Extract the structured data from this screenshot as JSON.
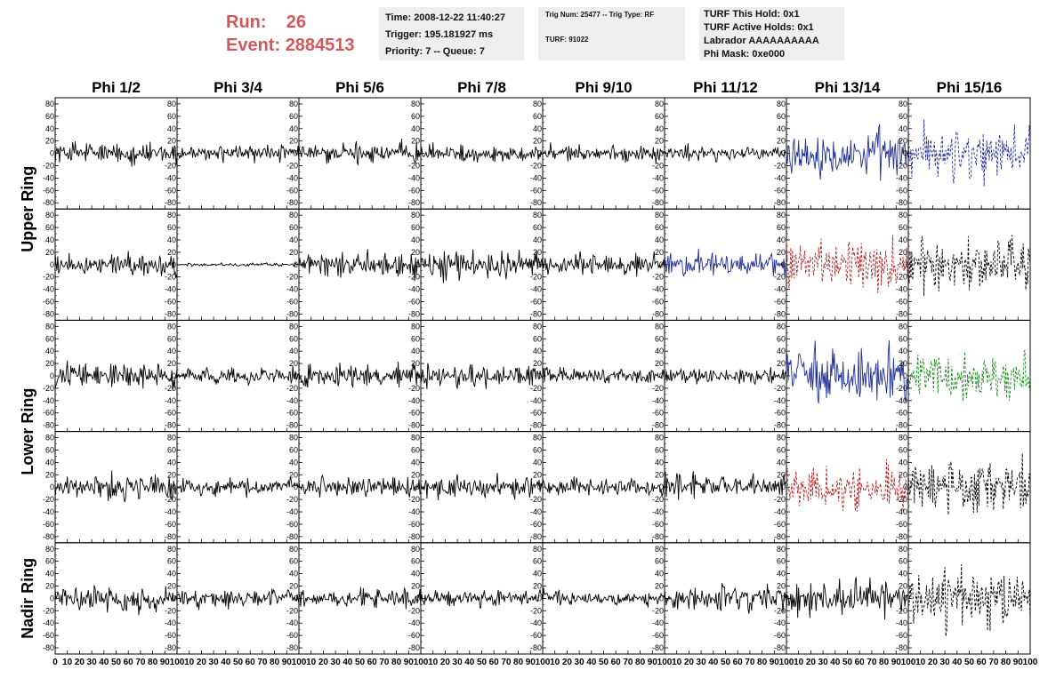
{
  "header": {
    "run_label": "Run:",
    "run_value": "26",
    "event_label": "Event:",
    "event_value": "2884513",
    "time_text": "Time: 2008-12-22 11:40:27",
    "trigger_text": "Trigger: 195.181927 ms",
    "priority_text": "Priority: 7 -- Queue: 7",
    "trig_num_text": "Trig Num: 25477 -- Trig Type: RF",
    "turf_text": "TURF: 91022",
    "turf_hold_text": "TURF This Hold: 0x1",
    "turf_active_text": "TURF Active Holds: 0x1",
    "labrador_text": "Labrador AAAAAAAAAA",
    "phi_mask_text": "Phi Mask: 0xe000"
  },
  "chart_data": {
    "type": "line",
    "columns": [
      "Phi 1/2",
      "Phi 3/4",
      "Phi 5/6",
      "Phi 7/8",
      "Phi 9/10",
      "Phi 11/12",
      "Phi 13/14",
      "Phi 15/16"
    ],
    "ring_labels": [
      {
        "text": "Upper Ring",
        "rows": [
          0,
          1
        ]
      },
      {
        "text": "Lower Ring",
        "rows": [
          2,
          3
        ]
      },
      {
        "text": "Nadir Ring",
        "rows": [
          4
        ]
      }
    ],
    "xlim": [
      0,
      100
    ],
    "ylim": [
      -90,
      90
    ],
    "x_ticks": [
      0,
      10,
      20,
      30,
      40,
      50,
      60,
      70,
      80,
      90,
      100
    ],
    "y_ticks": [
      -80,
      -60,
      -40,
      -20,
      0,
      20,
      40,
      60,
      80
    ],
    "colors": {
      "normal": "#000000",
      "blue": "#1f2f96",
      "red": "#b22222",
      "green": "#1a8c1a"
    },
    "panels": [
      [
        {
          "amp": 20,
          "color": "normal",
          "dashed": false
        },
        {
          "amp": 15,
          "color": "normal",
          "dashed": false
        },
        {
          "amp": 18,
          "color": "normal",
          "dashed": false
        },
        {
          "amp": 15,
          "color": "normal",
          "dashed": false
        },
        {
          "amp": 14,
          "color": "normal",
          "dashed": false
        },
        {
          "amp": 14,
          "color": "normal",
          "dashed": false
        },
        {
          "amp": 40,
          "color": "blue",
          "dashed": false
        },
        {
          "amp": 45,
          "color": "blue",
          "dashed": true
        }
      ],
      [
        {
          "amp": 20,
          "color": "normal",
          "dashed": false
        },
        {
          "amp": 3,
          "color": "normal",
          "dashed": false
        },
        {
          "amp": 22,
          "color": "normal",
          "dashed": false
        },
        {
          "amp": 25,
          "color": "normal",
          "dashed": false
        },
        {
          "amp": 20,
          "color": "normal",
          "dashed": false
        },
        {
          "amp": 20,
          "color": "blue",
          "dashed": false
        },
        {
          "amp": 45,
          "color": "red",
          "dashed": true
        },
        {
          "amp": 45,
          "color": "normal",
          "dashed": true
        }
      ],
      [
        {
          "amp": 25,
          "color": "normal",
          "dashed": false
        },
        {
          "amp": 14,
          "color": "normal",
          "dashed": false
        },
        {
          "amp": 22,
          "color": "normal",
          "dashed": false
        },
        {
          "amp": 18,
          "color": "normal",
          "dashed": false
        },
        {
          "amp": 14,
          "color": "normal",
          "dashed": false
        },
        {
          "amp": 14,
          "color": "normal",
          "dashed": false
        },
        {
          "amp": 45,
          "color": "blue",
          "dashed": false
        },
        {
          "amp": 40,
          "color": "green",
          "dashed": true
        }
      ],
      [
        {
          "amp": 22,
          "color": "normal",
          "dashed": false
        },
        {
          "amp": 15,
          "color": "normal",
          "dashed": false
        },
        {
          "amp": 18,
          "color": "normal",
          "dashed": false
        },
        {
          "amp": 20,
          "color": "normal",
          "dashed": false
        },
        {
          "amp": 15,
          "color": "normal",
          "dashed": false
        },
        {
          "amp": 20,
          "color": "normal",
          "dashed": false
        },
        {
          "amp": 40,
          "color": "red",
          "dashed": true
        },
        {
          "amp": 50,
          "color": "normal",
          "dashed": true
        }
      ],
      [
        {
          "amp": 22,
          "color": "normal",
          "dashed": false
        },
        {
          "amp": 15,
          "color": "normal",
          "dashed": false
        },
        {
          "amp": 16,
          "color": "normal",
          "dashed": false
        },
        {
          "amp": 14,
          "color": "normal",
          "dashed": false
        },
        {
          "amp": 14,
          "color": "normal",
          "dashed": false
        },
        {
          "amp": 22,
          "color": "normal",
          "dashed": false
        },
        {
          "amp": 30,
          "color": "normal",
          "dashed": false
        },
        {
          "amp": 50,
          "color": "normal",
          "dashed": true
        }
      ]
    ]
  }
}
